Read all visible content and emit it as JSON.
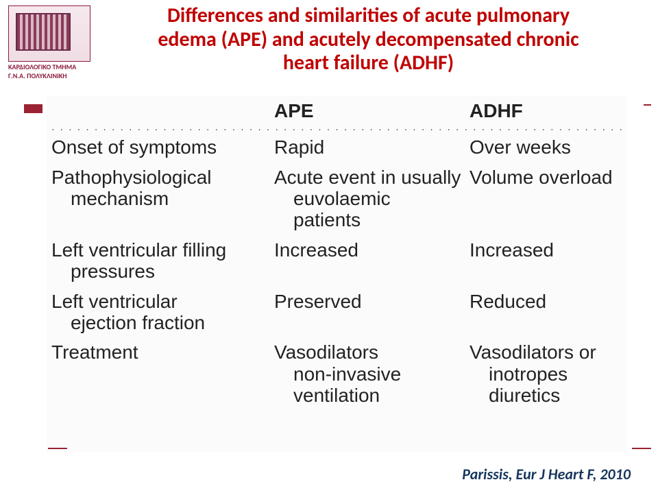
{
  "logo": {
    "line1": "ΚΑΡΔΙΟΛΟΓΙΚΟ ΤΜΗΜΑ",
    "line2": "Γ.Ν.Α. ΠΟΛΥΚΛΙΝΙΚΗ"
  },
  "title": {
    "line1": "Differences and similarities of acute pulmonary",
    "line2": "edema (APE) and acutely decompensated chronic",
    "line3": "heart failure (ADHF)"
  },
  "table": {
    "head": {
      "c1": "",
      "c2": "APE",
      "c3": "ADHF"
    },
    "rows": [
      {
        "c1": "Onset of symptoms",
        "c2": "Rapid",
        "c3": "Over weeks"
      },
      {
        "c1": "Pathophysiological",
        "c1b": "mechanism",
        "c2": "Acute event in usually",
        "c2b": "euvolaemic",
        "c2c": "patients",
        "c3": "Volume overload"
      },
      {
        "c1": "Left ventricular filling",
        "c1b": "pressures",
        "c2": "Increased",
        "c3": "Increased"
      },
      {
        "c1": "Left ventricular",
        "c1b": "ejection fraction",
        "c2": "Preserved",
        "c3": "Reduced"
      },
      {
        "c1": "Treatment",
        "c2": "Vasodilators",
        "c2b": "non-invasive",
        "c2c": "ventilation",
        "c3": "Vasodilators or",
        "c3b": "inotropes",
        "c3c": "diuretics"
      }
    ]
  },
  "citation": "Parissis,  Eur  J Heart F, 2010",
  "colors": {
    "title": "#c00000",
    "citation": "#17365d",
    "accent": "#9b2233"
  }
}
